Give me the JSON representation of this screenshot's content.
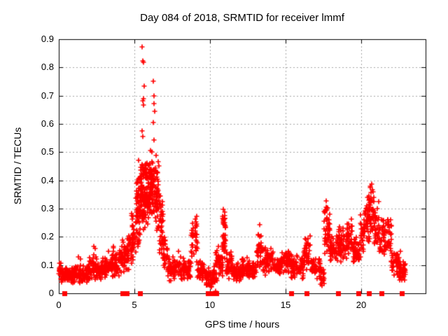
{
  "chart": {
    "title": "Day 084 of 2018, SRMTID for receiver lmmf",
    "xlabel": "GPS time / hours",
    "ylabel": "SRMTID / TECUs"
  },
  "chart_data": {
    "type": "scatter",
    "title": "Day 084 of 2018, SRMTID for receiver lmmf",
    "xlabel": "GPS time / hours",
    "ylabel": "SRMTID / TECUs",
    "xlim": [
      0,
      24.26
    ],
    "ylim": [
      0,
      0.9
    ],
    "xtick_values": [
      0,
      5,
      10,
      15,
      20
    ],
    "xtick_labels": [
      "0",
      "5",
      "10",
      "15",
      "20"
    ],
    "ytick_values": [
      0,
      0.1,
      0.2,
      0.3,
      0.4,
      0.5,
      0.6,
      0.7,
      0.8,
      0.9
    ],
    "ytick_labels": [
      "0",
      "0.1",
      "0.2",
      "0.3",
      "0.4",
      "0.5",
      "0.6",
      "0.7",
      "0.8",
      "0.9"
    ],
    "grid": true,
    "legend": "none",
    "marker": "plus",
    "colors": {
      "points": "#ff0000",
      "grid": "#a6a6a6",
      "frame": "#000000",
      "text": "#000000",
      "background": "#ffffff"
    },
    "random_seed": 1337,
    "band_segments": [
      [
        0.0,
        0.15,
        0.055,
        0.125,
        15
      ],
      [
        0.12,
        1.0,
        0.035,
        0.1,
        80
      ],
      [
        1.0,
        2.0,
        0.03,
        0.105,
        90
      ],
      [
        2.0,
        2.6,
        0.04,
        0.14,
        55
      ],
      [
        2.6,
        3.5,
        0.045,
        0.13,
        80
      ],
      [
        3.5,
        4.0,
        0.05,
        0.17,
        48
      ],
      [
        4.0,
        4.5,
        0.06,
        0.19,
        48
      ],
      [
        4.5,
        4.8,
        0.08,
        0.22,
        32
      ],
      [
        4.8,
        5.1,
        0.1,
        0.31,
        36
      ],
      [
        5.1,
        5.35,
        0.13,
        0.44,
        40
      ],
      [
        5.35,
        5.65,
        0.18,
        0.47,
        52
      ],
      [
        5.65,
        6.0,
        0.22,
        0.47,
        60
      ],
      [
        6.0,
        6.35,
        0.25,
        0.47,
        60
      ],
      [
        6.35,
        6.6,
        0.2,
        0.46,
        45
      ],
      [
        6.6,
        6.9,
        0.12,
        0.38,
        40
      ],
      [
        6.9,
        7.2,
        0.08,
        0.22,
        32
      ],
      [
        5.5,
        6.6,
        0.4,
        0.475,
        50
      ],
      [
        5.15,
        5.5,
        0.3,
        0.44,
        25
      ],
      [
        7.2,
        8.0,
        0.04,
        0.13,
        70
      ],
      [
        8.0,
        8.75,
        0.04,
        0.135,
        65
      ],
      [
        8.75,
        9.15,
        0.1,
        0.27,
        30
      ],
      [
        9.0,
        9.15,
        0.2,
        0.275,
        8
      ],
      [
        9.15,
        9.7,
        0.045,
        0.12,
        48
      ],
      [
        9.7,
        10.1,
        0.01,
        0.095,
        36
      ],
      [
        10.05,
        10.45,
        0.005,
        0.1,
        38
      ],
      [
        10.35,
        10.6,
        0.08,
        0.17,
        18
      ],
      [
        10.6,
        10.85,
        0.05,
        0.15,
        22
      ],
      [
        10.8,
        11.05,
        0.1,
        0.295,
        32
      ],
      [
        10.85,
        11.0,
        0.22,
        0.3,
        10
      ],
      [
        11.05,
        11.5,
        0.05,
        0.16,
        40
      ],
      [
        11.5,
        12.1,
        0.04,
        0.11,
        55
      ],
      [
        12.1,
        12.6,
        0.05,
        0.13,
        45
      ],
      [
        12.6,
        13.05,
        0.05,
        0.115,
        40
      ],
      [
        13.05,
        13.45,
        0.08,
        0.24,
        35
      ],
      [
        13.45,
        14.2,
        0.06,
        0.17,
        65
      ],
      [
        14.2,
        14.65,
        0.06,
        0.13,
        40
      ],
      [
        14.65,
        15.35,
        0.07,
        0.16,
        62
      ],
      [
        15.35,
        16.2,
        0.05,
        0.14,
        75
      ],
      [
        16.2,
        16.65,
        0.08,
        0.21,
        40
      ],
      [
        16.65,
        17.0,
        0.05,
        0.14,
        30
      ],
      [
        17.0,
        17.3,
        0.05,
        0.13,
        22
      ],
      [
        17.3,
        17.55,
        0.02,
        0.1,
        20
      ],
      [
        17.55,
        17.95,
        0.12,
        0.3,
        38
      ],
      [
        17.6,
        17.85,
        0.24,
        0.33,
        10
      ],
      [
        17.95,
        18.45,
        0.1,
        0.22,
        45
      ],
      [
        18.45,
        19.05,
        0.1,
        0.25,
        55
      ],
      [
        19.05,
        19.45,
        0.12,
        0.27,
        38
      ],
      [
        19.45,
        19.95,
        0.1,
        0.21,
        45
      ],
      [
        19.95,
        20.25,
        0.12,
        0.31,
        30
      ],
      [
        20.25,
        20.6,
        0.17,
        0.36,
        40
      ],
      [
        20.5,
        20.85,
        0.2,
        0.385,
        40
      ],
      [
        20.85,
        21.2,
        0.14,
        0.33,
        35
      ],
      [
        21.2,
        21.55,
        0.12,
        0.28,
        32
      ],
      [
        21.55,
        22.0,
        0.13,
        0.28,
        40
      ],
      [
        22.0,
        22.5,
        0.06,
        0.16,
        42
      ],
      [
        22.5,
        22.95,
        0.04,
        0.12,
        40
      ]
    ],
    "outlier_points": [
      [
        5.5,
        0.872
      ],
      [
        5.55,
        0.823
      ],
      [
        5.58,
        0.817
      ],
      [
        6.25,
        0.751
      ],
      [
        5.65,
        0.735
      ],
      [
        6.3,
        0.698
      ],
      [
        5.6,
        0.69
      ],
      [
        5.55,
        0.683
      ],
      [
        6.28,
        0.672
      ],
      [
        5.62,
        0.668
      ],
      [
        6.32,
        0.645
      ],
      [
        6.27,
        0.606
      ],
      [
        5.52,
        0.576
      ],
      [
        5.56,
        0.556
      ],
      [
        6.3,
        0.543
      ],
      [
        6.05,
        0.506
      ],
      [
        6.15,
        0.5
      ],
      [
        6.45,
        0.488
      ],
      [
        5.3,
        0.47
      ],
      [
        1.3,
        0.128
      ],
      [
        1.45,
        0.122
      ],
      [
        2.05,
        0.126
      ],
      [
        2.3,
        0.166
      ],
      [
        2.4,
        0.158
      ],
      [
        3.3,
        0.15
      ],
      [
        7.9,
        0.15
      ],
      [
        9.1,
        0.272
      ],
      [
        10.9,
        0.298
      ],
      [
        13.3,
        0.242
      ],
      [
        17.7,
        0.328
      ],
      [
        20.7,
        0.386
      ],
      [
        20.62,
        0.375
      ],
      [
        22.6,
        0.15
      ]
    ],
    "zero_marker_hours": [
      0.35,
      4.2,
      4.5,
      5.38,
      9.85,
      10.1,
      10.2,
      10.3,
      10.42,
      15.35,
      16.4,
      18.45,
      19.8,
      20.5,
      21.35,
      22.7
    ]
  }
}
